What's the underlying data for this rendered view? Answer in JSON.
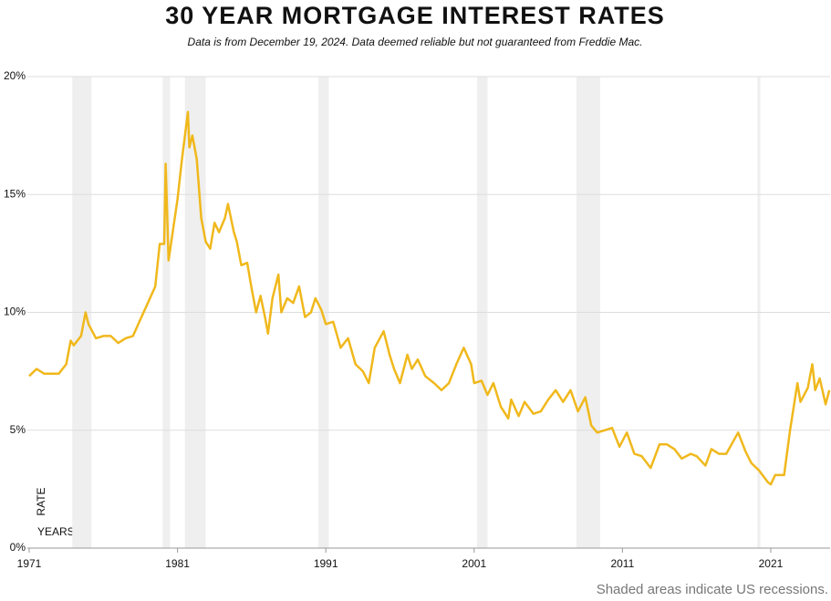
{
  "chart_data": {
    "type": "line",
    "title": "30 YEAR MORTGAGE INTEREST RATES",
    "subtitle": "Data is from December 19, 2024. Data deemed reliable but not guaranteed from Freddie Mac.",
    "y_label": "RATE",
    "x_label": "YEARS",
    "annotation": "Shaded areas indicate US recessions.",
    "color": "#f0b81c",
    "recession_color": "#efefef",
    "grid": true,
    "xlim": [
      1971,
      2025
    ],
    "ylim": [
      0,
      20
    ],
    "xticks": [
      1971,
      1981,
      1991,
      2001,
      2011,
      2021
    ],
    "yticks": [
      {
        "value": 0,
        "label": "0%"
      },
      {
        "value": 5,
        "label": "5%"
      },
      {
        "value": 10,
        "label": "10%"
      },
      {
        "value": 15,
        "label": "15%"
      },
      {
        "value": 20,
        "label": "20%"
      }
    ],
    "recessions": [
      [
        1973.9,
        1975.2
      ],
      [
        1980.0,
        1980.5
      ],
      [
        1981.5,
        1982.9
      ],
      [
        1990.5,
        1991.2
      ],
      [
        2001.2,
        2001.9
      ],
      [
        2007.9,
        2009.5
      ],
      [
        2020.1,
        2020.3
      ]
    ],
    "x": [
      1971.0,
      1971.5,
      1972.0,
      1972.5,
      1973.0,
      1973.5,
      1973.8,
      1974.0,
      1974.5,
      1974.8,
      1975.0,
      1975.5,
      1976.0,
      1976.5,
      1977.0,
      1977.5,
      1978.0,
      1978.5,
      1979.0,
      1979.5,
      1979.8,
      1980.1,
      1980.2,
      1980.4,
      1980.7,
      1981.0,
      1981.3,
      1981.7,
      1981.8,
      1982.0,
      1982.3,
      1982.6,
      1982.9,
      1983.2,
      1983.5,
      1983.8,
      1984.2,
      1984.4,
      1984.8,
      1985.0,
      1985.3,
      1985.7,
      1986.0,
      1986.3,
      1986.6,
      1986.9,
      1987.1,
      1987.4,
      1987.8,
      1988.0,
      1988.4,
      1988.8,
      1989.2,
      1989.6,
      1990.0,
      1990.3,
      1990.7,
      1991.0,
      1991.5,
      1992.0,
      1992.5,
      1993.0,
      1993.5,
      1993.9,
      1994.3,
      1994.9,
      1995.3,
      1995.6,
      1996.0,
      1996.5,
      1996.8,
      1997.2,
      1997.7,
      1998.3,
      1998.8,
      1999.3,
      1999.8,
      2000.3,
      2000.8,
      2001.0,
      2001.5,
      2001.9,
      2002.3,
      2002.8,
      2003.3,
      2003.5,
      2004.0,
      2004.4,
      2005.0,
      2005.5,
      2006.0,
      2006.5,
      2007.0,
      2007.5,
      2008.0,
      2008.5,
      2008.9,
      2009.3,
      2009.8,
      2010.3,
      2010.8,
      2011.3,
      2011.8,
      2012.3,
      2012.9,
      2013.5,
      2014.0,
      2014.5,
      2015.0,
      2015.6,
      2016.0,
      2016.6,
      2017.0,
      2017.5,
      2018.0,
      2018.8,
      2019.3,
      2019.7,
      2020.2,
      2020.8,
      2021.0,
      2021.3,
      2021.9,
      2022.3,
      2022.8,
      2023.0,
      2023.5,
      2023.8,
      2024.0,
      2024.3,
      2024.7,
      2024.95
    ],
    "values": [
      7.3,
      7.6,
      7.4,
      7.4,
      7.4,
      7.8,
      8.8,
      8.6,
      9.0,
      10.0,
      9.5,
      8.9,
      9.0,
      9.0,
      8.7,
      8.9,
      9.0,
      9.7,
      10.4,
      11.1,
      12.9,
      12.9,
      16.3,
      12.2,
      13.5,
      14.8,
      16.5,
      18.5,
      17.0,
      17.5,
      16.5,
      14.0,
      13.0,
      12.7,
      13.8,
      13.4,
      14.0,
      14.6,
      13.4,
      13.0,
      12.0,
      12.1,
      11.0,
      10.0,
      10.7,
      9.8,
      9.1,
      10.6,
      11.6,
      10.0,
      10.6,
      10.4,
      11.1,
      9.8,
      10.0,
      10.6,
      10.1,
      9.5,
      9.6,
      8.5,
      8.9,
      7.8,
      7.5,
      7.0,
      8.5,
      9.2,
      8.2,
      7.6,
      7.0,
      8.2,
      7.6,
      8.0,
      7.3,
      7.0,
      6.7,
      7.0,
      7.8,
      8.5,
      7.8,
      7.0,
      7.1,
      6.5,
      7.0,
      6.0,
      5.5,
      6.3,
      5.6,
      6.2,
      5.7,
      5.8,
      6.3,
      6.7,
      6.2,
      6.7,
      5.8,
      6.4,
      5.2,
      4.9,
      5.0,
      5.1,
      4.3,
      4.9,
      4.0,
      3.9,
      3.4,
      4.4,
      4.4,
      4.2,
      3.8,
      4.0,
      3.9,
      3.5,
      4.2,
      4.0,
      4.0,
      4.9,
      4.1,
      3.6,
      3.3,
      2.8,
      2.7,
      3.1,
      3.1,
      5.0,
      7.0,
      6.2,
      6.8,
      7.8,
      6.7,
      7.2,
      6.1,
      6.7
    ]
  }
}
